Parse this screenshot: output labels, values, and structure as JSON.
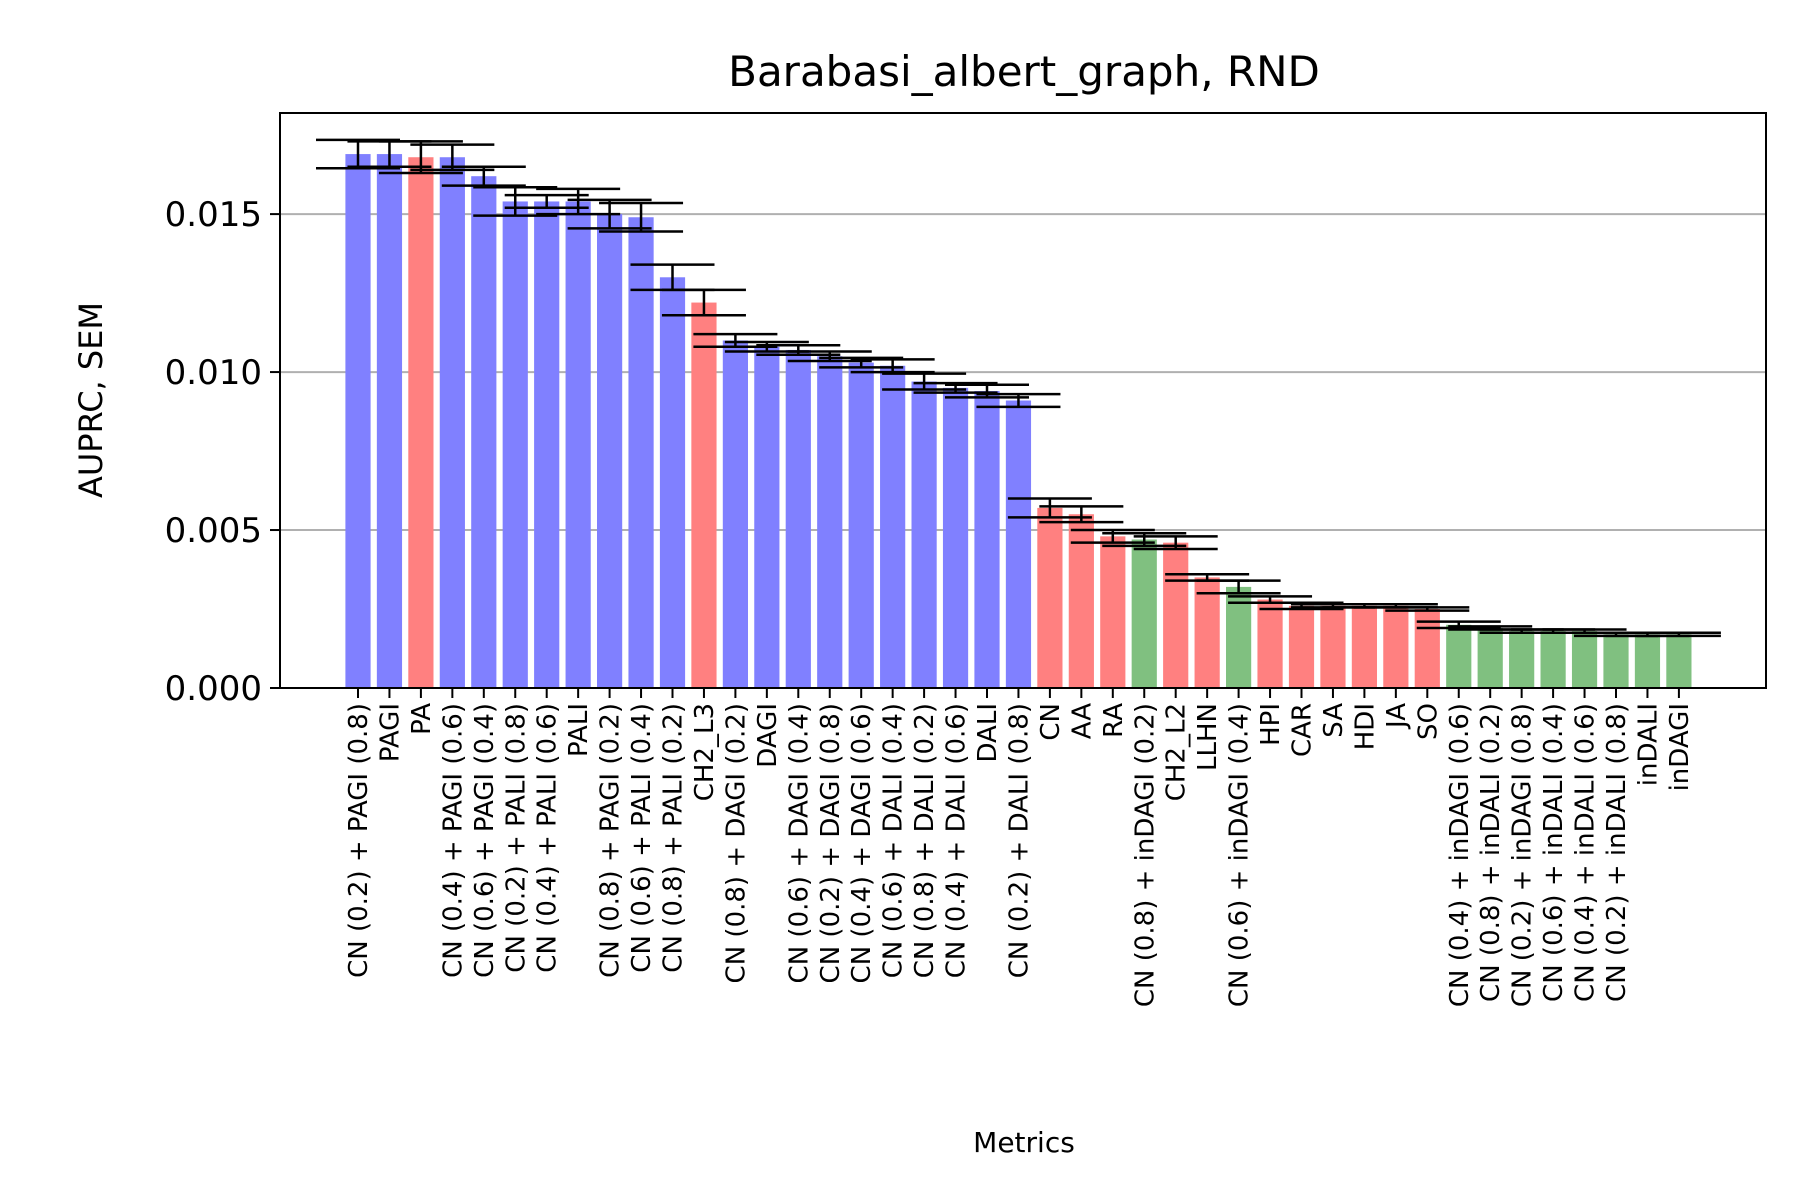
{
  "chart_data": {
    "type": "bar",
    "title": "Barabasi_albert_graph, RND",
    "xlabel": "Metrics",
    "ylabel": "AUPRC, SEM",
    "ylim": [
      0,
      0.0182
    ],
    "yticks": [
      "0.000",
      "0.005",
      "0.010",
      "0.015"
    ],
    "ytick_values": [
      0,
      0.005,
      0.01,
      0.015
    ],
    "grid": "y",
    "colors": {
      "blue": "#8080ff",
      "red": "#ff8080",
      "green": "#80c080",
      "error": "#000000"
    },
    "categories": [
      "CN (0.2) + PAGI (0.8)",
      "PAGI",
      "PA",
      "CN (0.4) + PAGI (0.6)",
      "CN (0.6) + PAGI (0.4)",
      "CN (0.2) + PALI (0.8)",
      "CN (0.4) + PALI (0.6)",
      "PALI",
      "CN (0.8) + PAGI (0.2)",
      "CN (0.6) + PALI (0.4)",
      "CN (0.8) + PALI (0.2)",
      "CH2_L3",
      "CN (0.8) + DAGI (0.2)",
      "DAGI",
      "CN (0.6) + DAGI (0.4)",
      "CN (0.2) + DAGI (0.8)",
      "CN (0.4) + DAGI (0.6)",
      "CN (0.6) + DALI (0.4)",
      "CN (0.8) + DALI (0.2)",
      "CN (0.4) + DALI (0.6)",
      "DALI",
      "CN (0.2) + DALI (0.8)",
      "CN",
      "AA",
      "RA",
      "CN (0.8) + inDAGI (0.2)",
      "CH2_L2",
      "LLHN",
      "CN (0.6) + inDAGI (0.4)",
      "HPI",
      "CAR",
      "SA",
      "HDI",
      "JA",
      "SO",
      "CN (0.4) + inDAGI (0.6)",
      "CN (0.8) + inDALI (0.2)",
      "CN (0.2) + inDAGI (0.8)",
      "CN (0.6) + inDALI (0.4)",
      "CN (0.4) + inDALI (0.6)",
      "CN (0.2) + inDALI (0.8)",
      "inDALI",
      "inDAGI"
    ],
    "series": [
      {
        "values": [
          0.0169,
          0.0169,
          0.0168,
          0.0168,
          0.0162,
          0.0154,
          0.0154,
          0.0154,
          0.015,
          0.0149,
          0.013,
          0.0122,
          0.011,
          0.0108,
          0.0107,
          0.0105,
          0.0103,
          0.0102,
          0.0097,
          0.0095,
          0.0094,
          0.0091,
          0.0057,
          0.0055,
          0.0048,
          0.0047,
          0.0046,
          0.0035,
          0.0032,
          0.0028,
          0.0026,
          0.0026,
          0.0026,
          0.0026,
          0.0025,
          0.002,
          0.0019,
          0.0018,
          0.0018,
          0.0018,
          0.0017,
          0.0017,
          0.0017
        ],
        "errors": [
          0.00045,
          0.0004,
          0.0005,
          0.0004,
          0.0003,
          0.00045,
          0.0002,
          0.0004,
          0.00045,
          0.00045,
          0.0004,
          0.0004,
          0.0002,
          0.00015,
          0.00015,
          0.00015,
          0.00015,
          0.0002,
          0.00025,
          0.00015,
          0.0002,
          0.0002,
          0.0003,
          0.00025,
          0.0002,
          0.0002,
          0.0002,
          0.0001,
          0.0002,
          0.0001,
          0.0001,
          5e-05,
          5e-05,
          5e-05,
          5e-05,
          0.0001,
          5e-05,
          5e-05,
          5e-05,
          5e-05,
          5e-05,
          5e-05,
          5e-05
        ],
        "colors": [
          "blue",
          "blue",
          "red",
          "blue",
          "blue",
          "blue",
          "blue",
          "blue",
          "blue",
          "blue",
          "blue",
          "red",
          "blue",
          "blue",
          "blue",
          "blue",
          "blue",
          "blue",
          "blue",
          "blue",
          "blue",
          "blue",
          "red",
          "red",
          "red",
          "green",
          "red",
          "red",
          "green",
          "red",
          "red",
          "red",
          "red",
          "red",
          "red",
          "green",
          "green",
          "green",
          "green",
          "green",
          "green",
          "green",
          "green"
        ]
      }
    ]
  }
}
